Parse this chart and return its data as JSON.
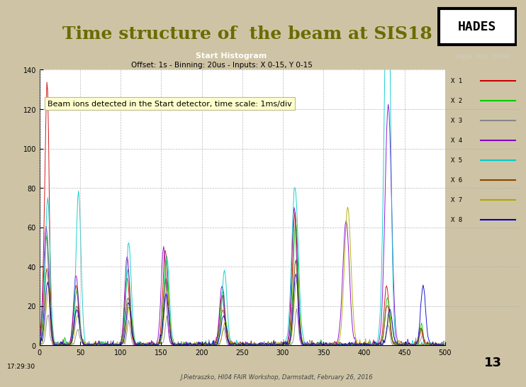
{
  "title": "Time structure of  the beam at SIS18",
  "title_color": "#6b6b00",
  "bg_color": "#cec4a5",
  "plot_bg_color": "#ffffff",
  "header_bg_color": "#404040",
  "header_title": "Start Histogram",
  "header_buttons": "bigge  stoo  |close",
  "subtitle": "Offset: 1s - Binning: 20us - Inputs: X 0-15, Y 0-15",
  "annotation": "Beam ions detected in the Start detector, time scale: 1ms/div",
  "annotation_bg": "#ffffcc",
  "xlabel_text": "17:29:30",
  "xlim": [
    0,
    500
  ],
  "ylim": [
    0,
    140
  ],
  "yticks": [
    0,
    20,
    40,
    60,
    80,
    100,
    120,
    140
  ],
  "xticks": [
    0,
    50,
    100,
    150,
    200,
    250,
    300,
    350,
    400,
    450,
    500
  ],
  "legend_labels": [
    "X 1",
    "X 2",
    "X 3",
    "X 4",
    "X 5",
    "X 6",
    "X 7",
    "X 8"
  ],
  "legend_colors": [
    "#cc0000",
    "#00cc00",
    "#888888",
    "#8800cc",
    "#00cccc",
    "#884400",
    "#aaaa00",
    "#0000cc"
  ],
  "footnote": "13",
  "footnote2": "J.Pietraszko, HI04 FAIR Workshop, Darmstadt, February 26, 2016"
}
